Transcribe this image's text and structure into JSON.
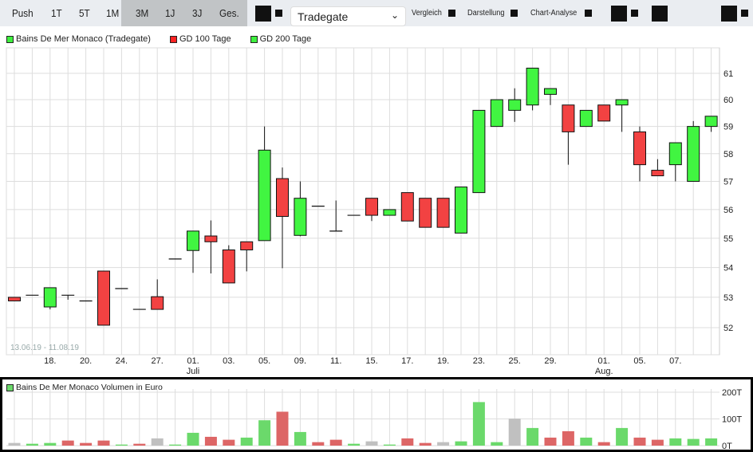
{
  "toolbar": {
    "ranges": [
      "Push",
      "1T",
      "5T",
      "1M",
      "3M",
      "1J",
      "3J",
      "Ges."
    ],
    "exchange": "Tradegate",
    "vergleich": "Vergleich",
    "darstellung": "Darstellung",
    "chart_analyse": "Chart-Analyse"
  },
  "legend": [
    {
      "label": "Bains De Mer Monaco (Tradegate)",
      "color": "#3ef03e"
    },
    {
      "label": "GD 100 Tage",
      "color": "#f22"
    },
    {
      "label": "GD 200 Tage",
      "color": "#3ef03e"
    }
  ],
  "range_note": "13.06.19 - 11.08.19",
  "colors": {
    "up": "#41f541",
    "down": "#f24242",
    "vol_up": "#6bd96b",
    "vol_down": "#dd6666",
    "vol_neutral": "#c0c0c0"
  },
  "chart_data": [
    {
      "type": "candlestick",
      "yscale": "log",
      "ylim": [
        51.2,
        62.1
      ],
      "yticks": [
        52,
        53,
        54,
        55,
        56,
        57,
        58,
        59,
        60,
        61
      ],
      "grid": true,
      "xtick_labels": [
        {
          "i": 2,
          "t": "18."
        },
        {
          "i": 4,
          "t": "20."
        },
        {
          "i": 6,
          "t": "24."
        },
        {
          "i": 8,
          "t": "27."
        },
        {
          "i": 10,
          "t": "01.",
          "m": "Juli"
        },
        {
          "i": 12,
          "t": "03."
        },
        {
          "i": 14,
          "t": "05."
        },
        {
          "i": 16,
          "t": "09."
        },
        {
          "i": 18,
          "t": "11."
        },
        {
          "i": 20,
          "t": "15."
        },
        {
          "i": 22,
          "t": "17."
        },
        {
          "i": 24,
          "t": "19."
        },
        {
          "i": 26,
          "t": "23."
        },
        {
          "i": 28,
          "t": "25."
        },
        {
          "i": 30,
          "t": "29."
        },
        {
          "i": 33,
          "t": "01.",
          "m": "Aug."
        },
        {
          "i": 35,
          "t": "05."
        },
        {
          "i": 37,
          "t": "07."
        }
      ],
      "ohlc": [
        [
          53.0,
          53.0,
          52.88,
          52.88
        ],
        [
          53.07,
          53.07,
          53.07,
          53.07
        ],
        [
          52.68,
          53.32,
          52.6,
          53.32
        ],
        [
          53.07,
          53.07,
          52.92,
          53.07
        ],
        [
          52.88,
          52.88,
          52.88,
          52.88
        ],
        [
          53.88,
          53.88,
          52.08,
          52.08
        ],
        [
          53.29,
          53.29,
          53.29,
          53.29
        ],
        [
          52.6,
          52.6,
          52.6,
          52.6
        ],
        [
          53.02,
          53.6,
          52.6,
          52.6
        ],
        [
          54.29,
          54.29,
          54.29,
          54.29
        ],
        [
          54.58,
          55.25,
          53.82,
          55.25
        ],
        [
          55.08,
          55.62,
          53.8,
          54.88
        ],
        [
          54.6,
          54.76,
          53.48,
          53.48
        ],
        [
          54.88,
          54.88,
          53.87,
          54.6
        ],
        [
          54.92,
          59.0,
          54.92,
          58.13
        ],
        [
          57.1,
          57.5,
          53.98,
          55.76
        ],
        [
          55.1,
          57.0,
          55.07,
          56.4
        ],
        [
          56.12,
          56.12,
          56.12,
          56.12
        ],
        [
          55.25,
          56.32,
          55.25,
          55.25
        ],
        [
          55.8,
          55.8,
          55.8,
          55.8
        ],
        [
          56.4,
          56.4,
          55.6,
          55.8
        ],
        [
          55.8,
          56.0,
          55.8,
          56.0
        ],
        [
          56.6,
          56.6,
          55.6,
          55.6
        ],
        [
          56.4,
          56.4,
          55.38,
          55.38
        ],
        [
          56.4,
          56.4,
          55.38,
          55.38
        ],
        [
          55.18,
          56.8,
          55.18,
          56.8
        ],
        [
          56.6,
          59.6,
          56.6,
          59.6
        ],
        [
          59.0,
          60.0,
          59.0,
          60.0
        ],
        [
          59.6,
          60.43,
          59.17,
          60.0
        ],
        [
          59.8,
          61.2,
          59.6,
          61.2
        ],
        [
          60.2,
          60.42,
          59.8,
          60.42
        ],
        [
          59.8,
          59.8,
          57.6,
          58.8
        ],
        [
          59.0,
          59.6,
          59.0,
          59.6
        ],
        [
          59.8,
          59.8,
          59.2,
          59.2
        ],
        [
          59.8,
          60.0,
          58.8,
          60.0
        ],
        [
          58.8,
          59.0,
          57.0,
          57.6
        ],
        [
          57.4,
          57.8,
          57.2,
          57.2
        ],
        [
          57.6,
          58.4,
          57.0,
          58.4
        ],
        [
          57.0,
          59.2,
          57.0,
          59.0
        ],
        [
          59.0,
          59.38,
          58.8,
          59.38
        ]
      ]
    },
    {
      "type": "bar",
      "title": "Bains De Mer Monaco Volumen in Euro",
      "ylim": [
        0,
        200
      ],
      "yticks": [
        {
          "v": 0,
          "t": "0T"
        },
        {
          "v": 100,
          "t": "100T"
        },
        {
          "v": 200,
          "t": "200T"
        }
      ],
      "values": [
        10,
        7,
        10,
        19,
        10,
        19,
        4,
        7,
        27,
        4,
        48,
        33,
        22,
        30,
        95,
        127,
        51,
        13,
        22,
        7,
        16,
        4,
        27,
        10,
        13,
        16,
        163,
        13,
        101,
        66,
        30,
        54,
        30,
        13,
        66,
        30,
        22,
        27,
        25,
        27
      ],
      "kinds": [
        "n",
        "u",
        "u",
        "d",
        "d",
        "d",
        "u",
        "d",
        "n",
        "u",
        "u",
        "d",
        "d",
        "u",
        "u",
        "d",
        "u",
        "d",
        "d",
        "u",
        "n",
        "u",
        "d",
        "d",
        "n",
        "u",
        "u",
        "u",
        "n",
        "u",
        "d",
        "d",
        "u",
        "d",
        "u",
        "d",
        "d",
        "u",
        "u",
        "u"
      ]
    }
  ]
}
